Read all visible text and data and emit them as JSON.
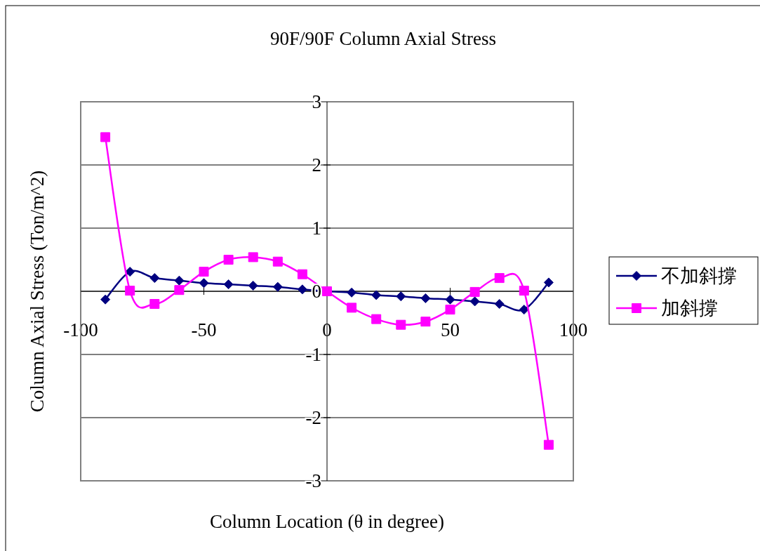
{
  "chart_data": {
    "type": "line",
    "title": "90F/90F Column Axial Stress",
    "xlabel": "Column Location (θ  in degree)",
    "ylabel": "Column Axial Stress (Ton/m^2)",
    "x": [
      -90,
      -80,
      -70,
      -60,
      -50,
      -40,
      -30,
      -20,
      -10,
      0,
      10,
      20,
      30,
      40,
      50,
      60,
      70,
      80,
      90
    ],
    "series": [
      {
        "name": "不加斜撐",
        "color": "#000080",
        "marker": "diamond",
        "values": [
          -0.13,
          0.31,
          0.21,
          0.17,
          0.13,
          0.11,
          0.09,
          0.07,
          0.03,
          0,
          -0.02,
          -0.06,
          -0.08,
          -0.11,
          -0.13,
          -0.16,
          -0.2,
          -0.29,
          0.14
        ]
      },
      {
        "name": "加斜撐",
        "color": "#ff00ff",
        "marker": "square",
        "values": [
          2.44,
          0.01,
          -0.2,
          0.02,
          0.31,
          0.5,
          0.54,
          0.47,
          0.27,
          0,
          -0.26,
          -0.44,
          -0.53,
          -0.48,
          -0.29,
          -0.01,
          0.21,
          0.01,
          -2.43
        ]
      }
    ],
    "xlim": [
      -100,
      100
    ],
    "xticks": [
      -100,
      -50,
      0,
      50,
      100
    ],
    "ylim": [
      -3,
      3
    ],
    "yticks": [
      -3,
      -2,
      -1,
      0,
      1,
      2,
      3
    ],
    "grid": "y",
    "legend": "right",
    "line_style": "solid"
  }
}
